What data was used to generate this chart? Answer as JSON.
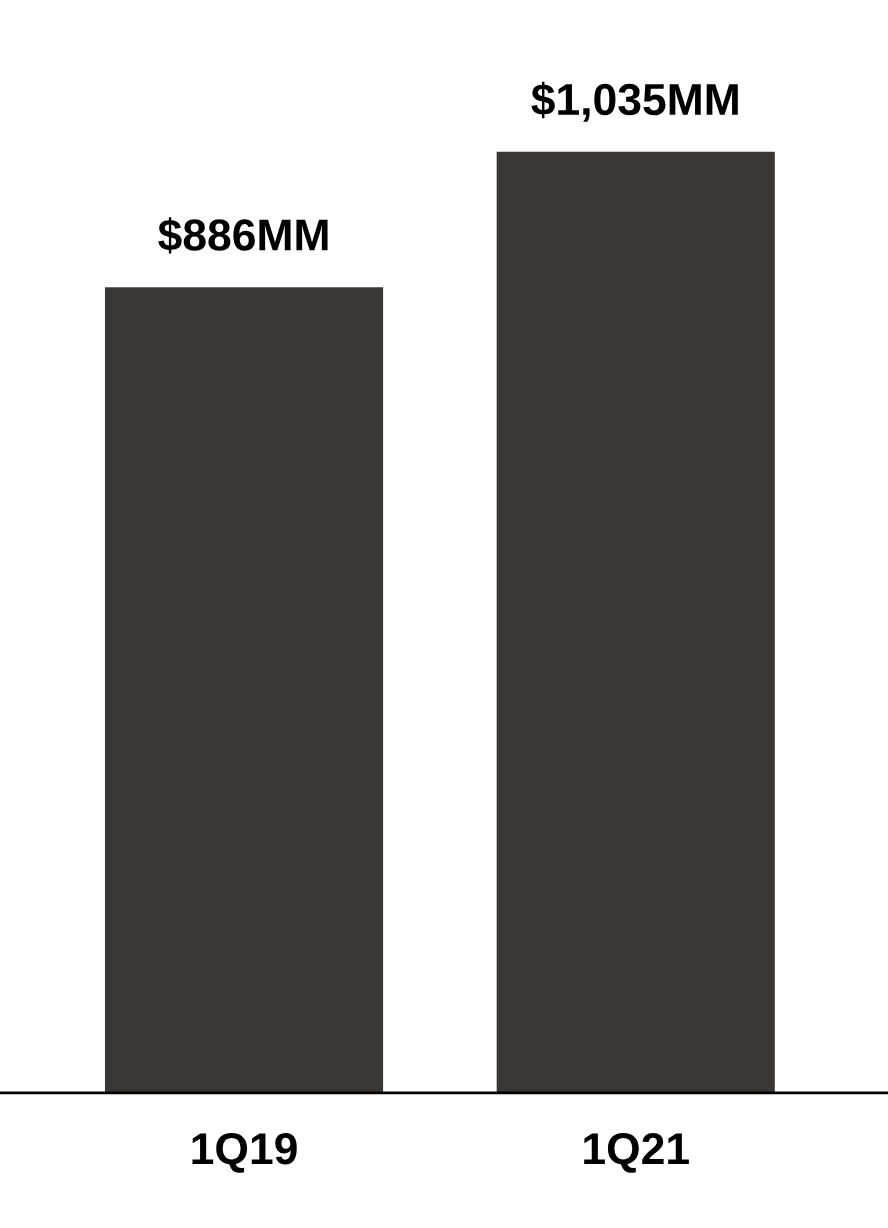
{
  "chart_data": {
    "type": "bar",
    "categories": [
      "1Q19",
      "1Q21"
    ],
    "values": [
      886,
      1035
    ],
    "color": "#3a3836",
    "value_labels": [
      "$886MM",
      "$1,035MM"
    ],
    "grid": false,
    "legend": false
  }
}
